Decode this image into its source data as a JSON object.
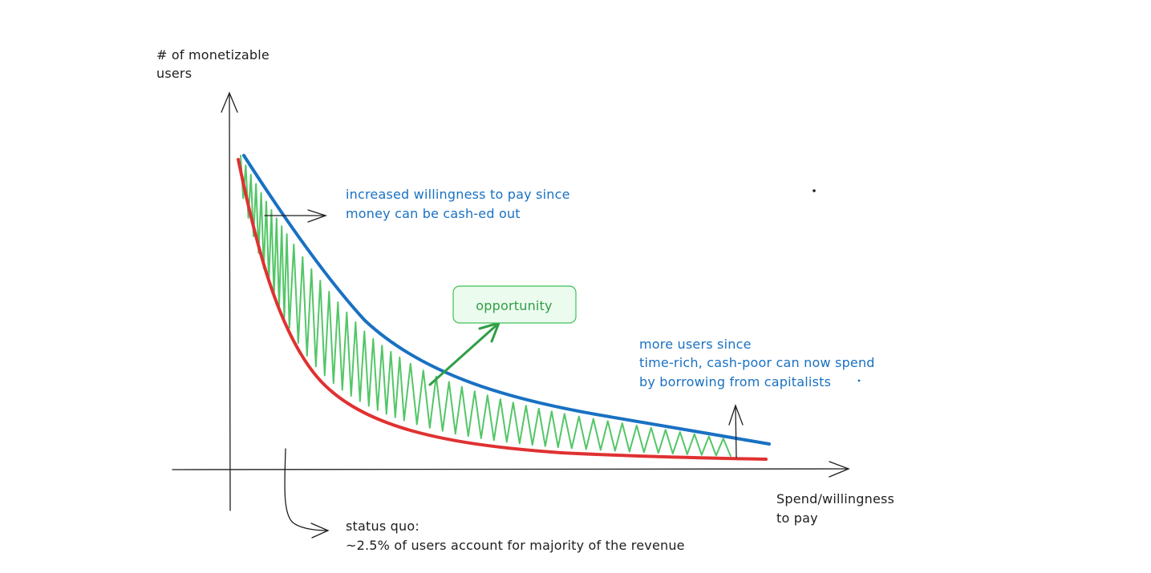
{
  "axes": {
    "y_label": [
      "# of monetizable",
      "users"
    ],
    "x_label": [
      "Spend/willingness",
      "to pay"
    ]
  },
  "annotations": {
    "upper_left": [
      "increased willingness to pay since",
      "money can be cash-ed out"
    ],
    "right": [
      "more users since",
      "time-rich, cash-poor can now spend",
      "by borrowing from capitalists"
    ],
    "bottom": [
      "status quo:",
      "~2.5% of users account for majority of the revenue"
    ],
    "callout": "opportunity"
  },
  "colors": {
    "axis": "#1e1e1e",
    "status_quo_curve": "#e03131",
    "new_curve": "#1971c2",
    "opportunity": "#2f9e44",
    "opportunity_fill": "#ebfbee",
    "hatch": "#40c057"
  },
  "icons": [
    "arrow-right-icon",
    "arrow-up-icon",
    "curved-arrow-icon",
    "opportunity-arrow-icon"
  ]
}
